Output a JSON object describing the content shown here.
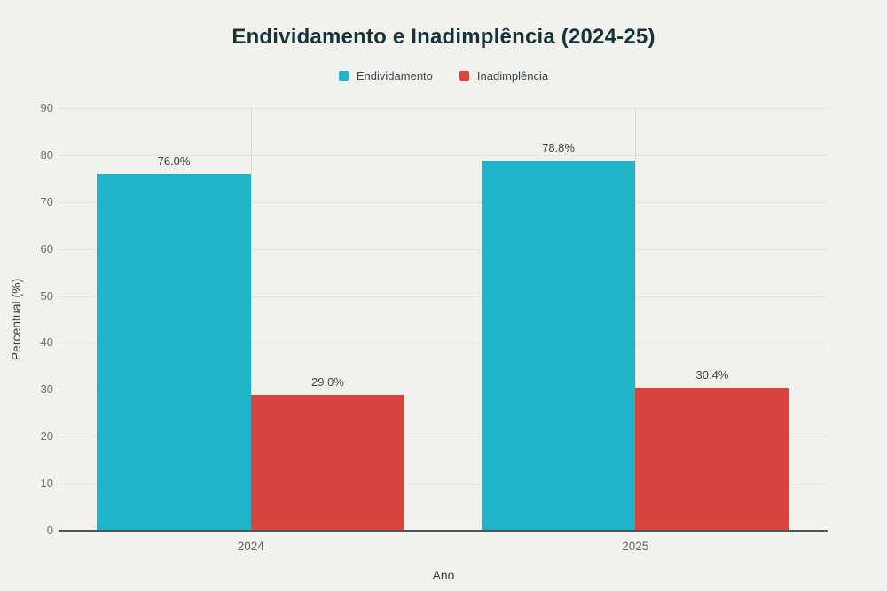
{
  "chart_data": {
    "type": "bar",
    "title": "Endividamento e Inadimplência (2024-25)",
    "categories": [
      "2024",
      "2025"
    ],
    "series": [
      {
        "name": "Endividamento",
        "color": "#1fb4c8",
        "values": [
          76.0,
          78.8
        ],
        "labels": [
          "76.0%",
          "78.8%"
        ]
      },
      {
        "name": "Inadimplência",
        "color": "#d8453f",
        "values": [
          29.0,
          30.4
        ],
        "labels": [
          "29.0%",
          "30.4%"
        ]
      }
    ],
    "xlabel": "Ano",
    "ylabel": "Percentual (%)",
    "ylim": [
      0,
      90
    ],
    "yticks": [
      0,
      10,
      20,
      30,
      40,
      50,
      60,
      70,
      80,
      90
    ],
    "legend_position": "top",
    "grid": true
  },
  "colors": {
    "background": "#f2f1ec",
    "grid_horizontal": "#e4e3dd",
    "grid_vertical": "#dbdad4",
    "axis_line": "#4d5657",
    "tick_text": "#667072",
    "value_label_text": "#3a4546",
    "title_text": "#14333a"
  }
}
